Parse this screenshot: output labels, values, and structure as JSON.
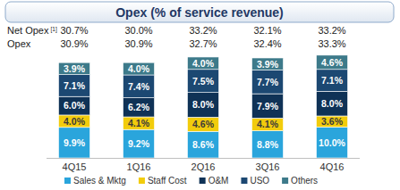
{
  "chart_data": {
    "type": "bar",
    "title": "Opex (% of service revenue)",
    "categories": [
      "4Q15",
      "1Q16",
      "2Q16",
      "3Q16",
      "4Q16"
    ],
    "stacked": true,
    "data_labels": true,
    "tick_labels": "x",
    "grid": false,
    "legend": "bottom",
    "ylim": [
      0,
      35
    ],
    "series": [
      {
        "name": "Sales & Mktg",
        "color": "#2aa5dc",
        "values": [
          9.9,
          9.2,
          8.6,
          8.8,
          10.0
        ],
        "value_labels": [
          "9.9%",
          "9.2%",
          "8.6%",
          "8.8%",
          "10.0%"
        ]
      },
      {
        "name": "Staff Cost",
        "color": "#f2cc0c",
        "values": [
          4.0,
          4.1,
          4.6,
          4.1,
          3.6
        ],
        "value_labels": [
          "4.0%",
          "4.1%",
          "4.6%",
          "4.1%",
          "3.6%"
        ]
      },
      {
        "name": "O&M",
        "color": "#0f3256",
        "values": [
          6.0,
          6.2,
          8.0,
          7.9,
          8.0
        ],
        "value_labels": [
          "6.0%",
          "6.2%",
          "8.0%",
          "7.9%",
          "8.0%"
        ]
      },
      {
        "name": "USO",
        "color": "#1c4872",
        "values": [
          7.1,
          7.4,
          7.5,
          7.7,
          7.1
        ],
        "value_labels": [
          "7.1%",
          "7.4%",
          "7.5%",
          "7.7%",
          "7.1%"
        ]
      },
      {
        "name": "Others",
        "color": "#3d7a8a",
        "values": [
          3.9,
          4.0,
          4.0,
          3.9,
          4.6
        ],
        "value_labels": [
          "3.9%",
          "4.0%",
          "4.0%",
          "3.9%",
          "4.6%"
        ]
      }
    ],
    "summary_rows": [
      {
        "name": "Net Opex",
        "footnote": "[1]",
        "values": [
          30.7,
          30.0,
          33.2,
          32.1,
          33.2
        ],
        "value_labels": [
          "30.7%",
          "30.0%",
          "33.2%",
          "32.1%",
          "33.2%"
        ]
      },
      {
        "name": "Opex",
        "values": [
          30.9,
          30.9,
          32.7,
          32.4,
          33.3
        ],
        "value_labels": [
          "30.9%",
          "30.9%",
          "32.7%",
          "32.4%",
          "33.3%"
        ]
      }
    ]
  }
}
